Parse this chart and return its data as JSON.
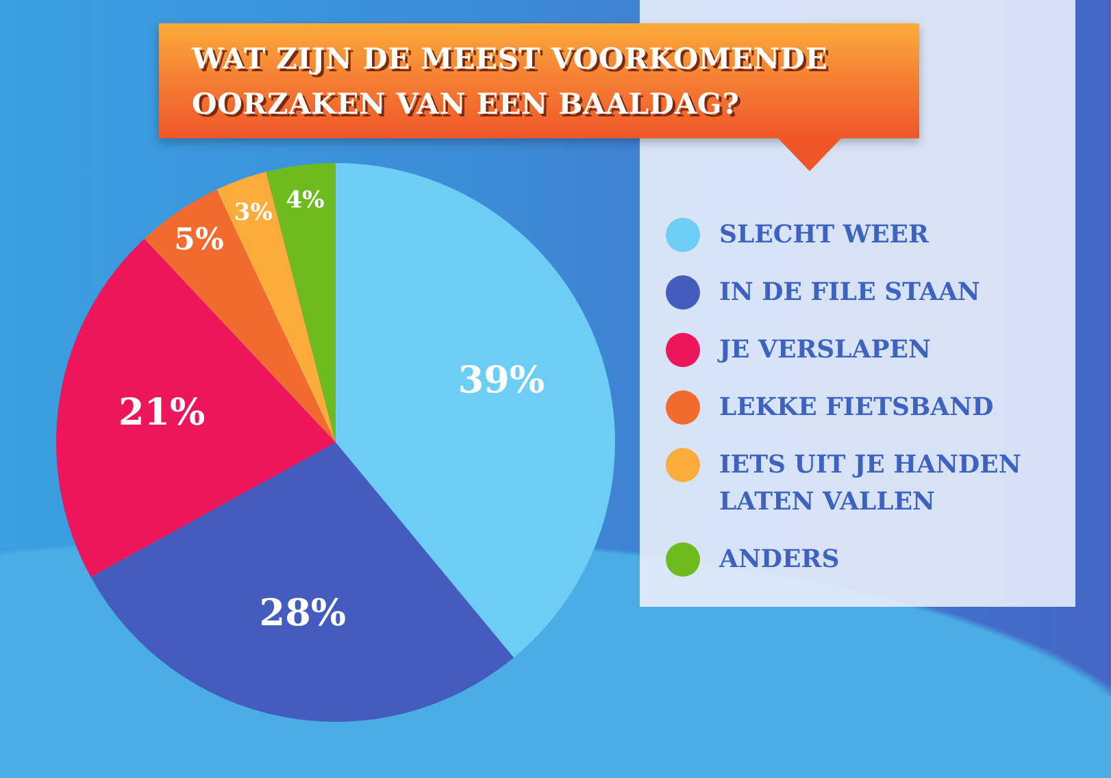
{
  "chart_data": {
    "type": "pie",
    "title": "WAT ZIJN DE MEEST VOORKOMENDE OORZAKEN VAN EEN BAALDAG?",
    "categories": [
      "SLECHT WEER",
      "IN DE FILE STAAN",
      "JE VERSLAPEN",
      "LEKKE FIETSBAND",
      "IETS UIT JE HANDEN LATEN VALLEN",
      "ANDERS"
    ],
    "values": [
      39,
      28,
      21,
      5,
      3,
      4
    ],
    "value_labels": [
      "39%",
      "28%",
      "21%",
      "5%",
      "3%",
      "4%"
    ],
    "colors": [
      "#6dcdf5",
      "#435cbd",
      "#ee165a",
      "#f26a2e",
      "#fbac3a",
      "#6dbb1f"
    ],
    "legend": "right"
  }
}
